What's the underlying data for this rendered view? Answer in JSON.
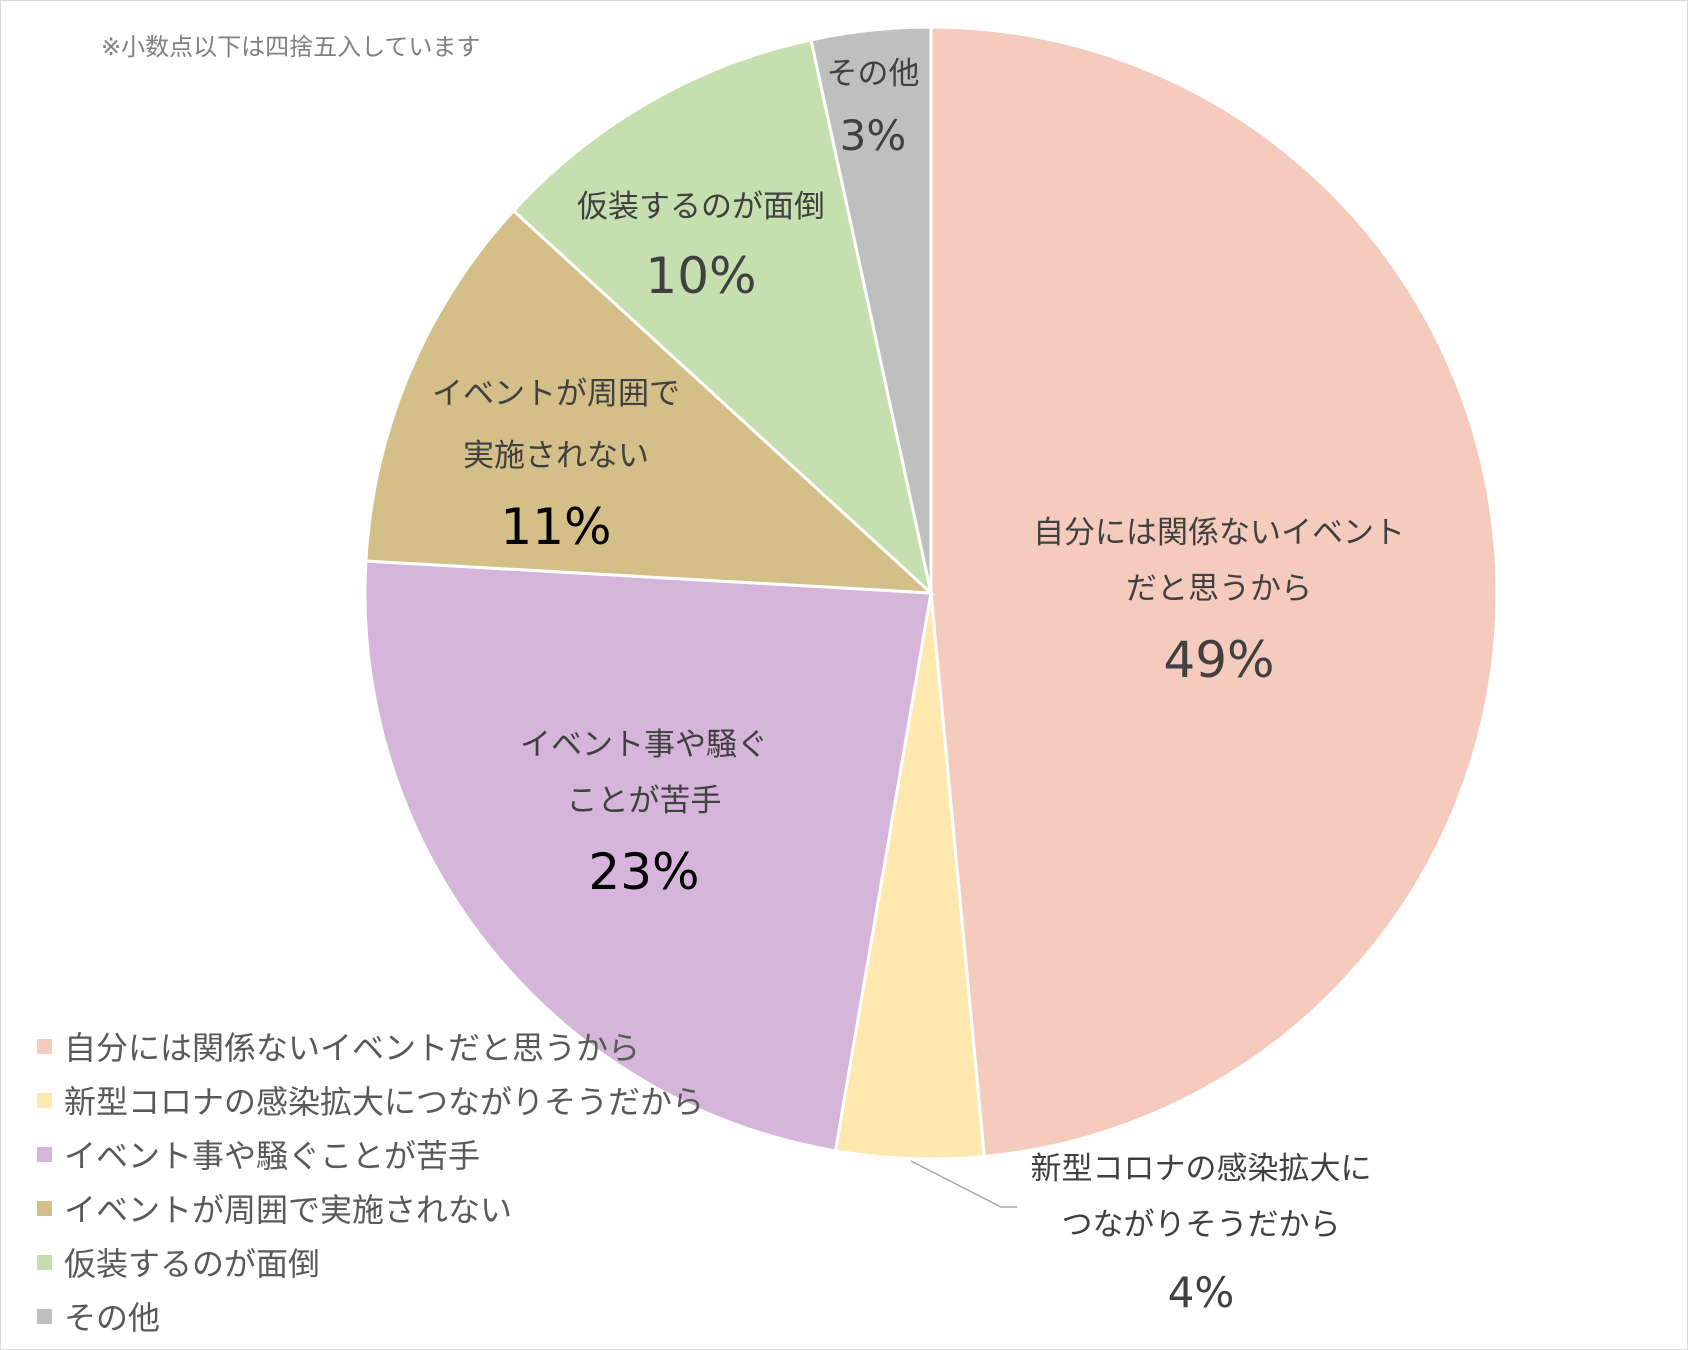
{
  "note": "※小数点以下は四捨五入しています",
  "chart_data": {
    "type": "pie",
    "start_angle_deg": 0,
    "direction": "clockwise",
    "slices": [
      {
        "name": "自分には関係ないイベントだと思うから",
        "value": 48.5,
        "pct_label": "49%",
        "color": "#F5CBBD",
        "label_lines": [
          "自分には関係ないイベント",
          "だと思うから"
        ]
      },
      {
        "name": "新型コロナの感染拡大につながりそうだから",
        "value": 4.2,
        "pct_label": "4%",
        "color": "#FEE8AE",
        "label_lines": [
          "新型コロナの感染拡大に",
          "つながりそうだから"
        ]
      },
      {
        "name": "イベント事や騒ぐことが苦手",
        "value": 23.2,
        "pct_label": "23%",
        "color": "#D5B5DA",
        "label_lines": [
          "イベント事や騒ぐ",
          "ことが苦手"
        ]
      },
      {
        "name": "イベントが周囲で実施されない",
        "value": 10.9,
        "pct_label": "11%",
        "color": "#D5BF88",
        "label_lines": [
          "イベントが周囲で",
          "実施されない"
        ]
      },
      {
        "name": "仮装するのが面倒",
        "value": 9.8,
        "pct_label": "10%",
        "color": "#C5DFAF",
        "label_lines": [
          "仮装するのが面倒"
        ]
      },
      {
        "name": "その他",
        "value": 3.4,
        "pct_label": "3%",
        "color": "#BFBFBF",
        "label_lines": [
          "その他"
        ]
      }
    ],
    "legend_position": "bottom-left"
  }
}
